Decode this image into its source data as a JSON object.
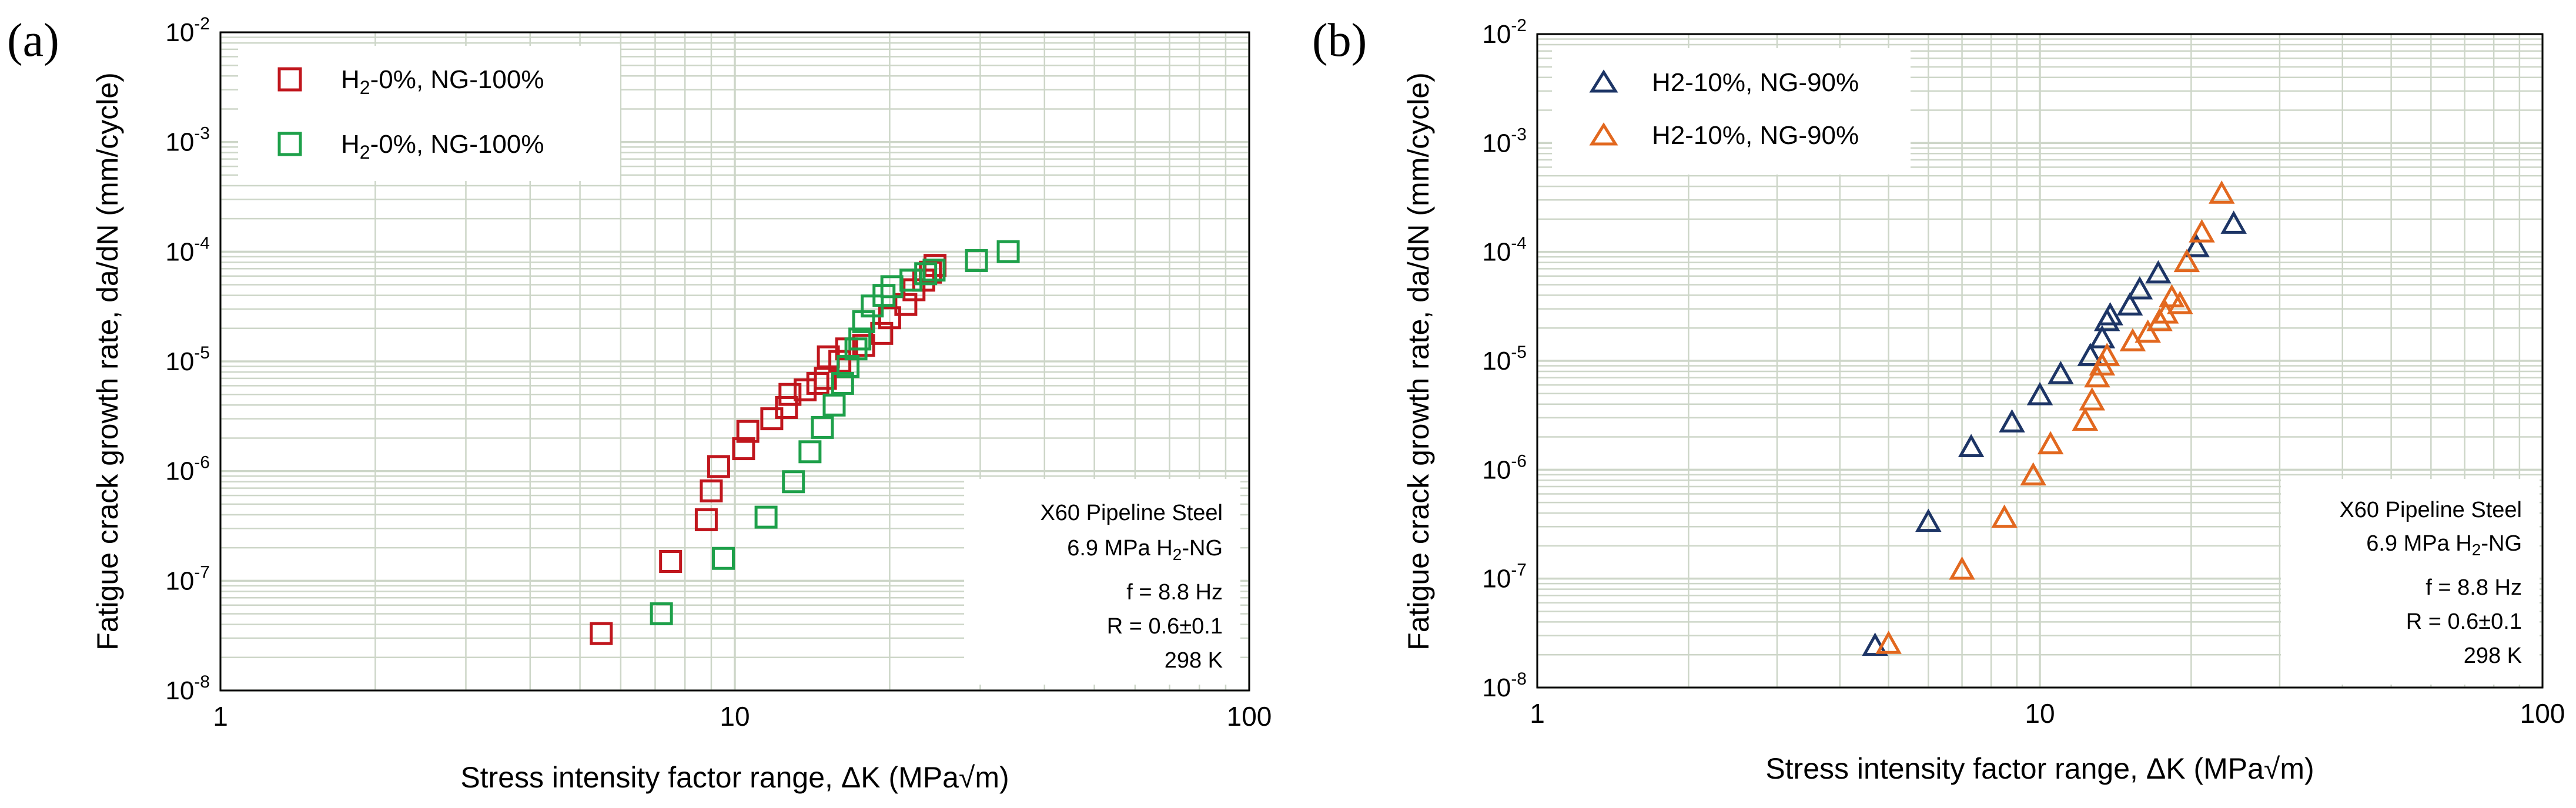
{
  "figure": {
    "colors": {
      "grid": "#cdd6c8",
      "axis": "#000000",
      "panel_a_series1": "#c0161d",
      "panel_a_series2": "#1ea04a",
      "panel_b_series1": "#1d3566",
      "panel_b_series2": "#e2681f"
    }
  },
  "chart_data": [
    {
      "panel_label": "(a)",
      "type": "scatter",
      "x_scale": "log",
      "y_scale": "log",
      "xlim": [
        1,
        100
      ],
      "ylim": [
        1e-08,
        0.01
      ],
      "xlabel": "Stress intensity factor range, ΔK (MPa√m)",
      "ylabel": "Fatigue crack growth rate, da/dN (mm/cycle)",
      "x_ticks": [
        {
          "value": 1,
          "label": "1"
        },
        {
          "value": 10,
          "label": "10"
        },
        {
          "value": 100,
          "label": "100"
        }
      ],
      "y_ticks": [
        {
          "value": 1e-08,
          "base": "10",
          "exp": "-8"
        },
        {
          "value": 1e-07,
          "base": "10",
          "exp": "-7"
        },
        {
          "value": 1e-06,
          "base": "10",
          "exp": "-6"
        },
        {
          "value": 1e-05,
          "base": "10",
          "exp": "-5"
        },
        {
          "value": 0.0001,
          "base": "10",
          "exp": "-4"
        },
        {
          "value": 0.001,
          "base": "10",
          "exp": "-3"
        },
        {
          "value": 0.01,
          "base": "10",
          "exp": "-2"
        }
      ],
      "grid": true,
      "marker": "square",
      "legend_position": "top-left",
      "series": [
        {
          "name": "H2-0%, NG-100%",
          "label_main": "H",
          "label_sub": "2",
          "label_rest": "-0%, NG-100%",
          "color": "#c0161d",
          "x": [
            5.5,
            7.5,
            8.8,
            9.0,
            9.3,
            10.4,
            10.6,
            11.8,
            12.6,
            12.8,
            13.7,
            14.5,
            15.0,
            15.2,
            16.0,
            16.5,
            17.8,
            19.3,
            20.0,
            21.5,
            22.3,
            23.3,
            24.0,
            24.5
          ],
          "y": [
            3.3e-08,
            1.5e-07,
            3.6e-07,
            6.6e-07,
            1.1e-06,
            1.6e-06,
            2.3e-06,
            3e-06,
            3.8e-06,
            5e-06,
            5.5e-06,
            6.3e-06,
            7e-06,
            1.1e-05,
            1e-05,
            1.3e-05,
            1.4e-05,
            1.8e-05,
            2.5e-05,
            3.3e-05,
            4.5e-05,
            5.5e-05,
            6.5e-05,
            7.5e-05
          ]
        },
        {
          "name": "H2-0%, NG-100%",
          "label_main": "H",
          "label_sub": "2",
          "label_rest": "-0%, NG-100%",
          "color": "#1ea04a",
          "x": [
            7.2,
            9.5,
            11.5,
            13.0,
            14.0,
            14.8,
            15.6,
            16.2,
            16.6,
            17.2,
            17.5,
            17.8,
            18.5,
            19.5,
            20.2,
            22.0,
            23.5,
            24.4,
            29.5,
            34.0
          ],
          "y": [
            5e-08,
            1.6e-07,
            3.8e-07,
            8e-07,
            1.5e-06,
            2.5e-06,
            4e-06,
            6.3e-06,
            9e-06,
            1.3e-05,
            1.6e-05,
            2.3e-05,
            3.2e-05,
            4e-05,
            4.8e-05,
            5.5e-05,
            6.3e-05,
            6.8e-05,
            8.3e-05,
            0.0001
          ]
        }
      ],
      "annotation": {
        "line1": "X60 Pipeline Steel",
        "line2_main": "6.9 MPa H",
        "line2_sub": "2",
        "line2_rest": "-NG",
        "line3": "f = 8.8 Hz",
        "line4": "R = 0.6±0.1",
        "line5": "298 K"
      }
    },
    {
      "panel_label": "(b)",
      "type": "scatter",
      "x_scale": "log",
      "y_scale": "log",
      "xlim": [
        1,
        100
      ],
      "ylim": [
        1e-08,
        0.01
      ],
      "xlabel": "Stress intensity factor range, ΔK (MPa√m)",
      "ylabel": "Fatigue crack growth rate, da/dN (mm/cycle)",
      "x_ticks": [
        {
          "value": 1,
          "label": "1"
        },
        {
          "value": 10,
          "label": "10"
        },
        {
          "value": 100,
          "label": "100"
        }
      ],
      "y_ticks": [
        {
          "value": 1e-08,
          "base": "10",
          "exp": "-8"
        },
        {
          "value": 1e-07,
          "base": "10",
          "exp": "-7"
        },
        {
          "value": 1e-06,
          "base": "10",
          "exp": "-6"
        },
        {
          "value": 1e-05,
          "base": "10",
          "exp": "-5"
        },
        {
          "value": 0.0001,
          "base": "10",
          "exp": "-4"
        },
        {
          "value": 0.001,
          "base": "10",
          "exp": "-3"
        },
        {
          "value": 0.01,
          "base": "10",
          "exp": "-2"
        }
      ],
      "grid": true,
      "marker": "triangle",
      "legend_position": "top-left",
      "series": [
        {
          "name": "H2-10%, NG-90%",
          "label_main": "H2-10%, NG-90%",
          "label_sub": "",
          "label_rest": "",
          "color": "#1d3566",
          "x": [
            4.7,
            6.0,
            7.3,
            8.8,
            10.0,
            11.0,
            12.6,
            13.3,
            13.6,
            13.8,
            15.1,
            15.8,
            17.2,
            20.5,
            24.3
          ],
          "y": [
            2.4e-08,
            3.3e-07,
            1.6e-06,
            2.7e-06,
            4.8e-06,
            7.5e-06,
            1.1e-05,
            1.6e-05,
            2.3e-05,
            2.6e-05,
            3.2e-05,
            4.5e-05,
            6.3e-05,
            0.00011,
            0.00018
          ]
        },
        {
          "name": "H2-10%, NG-90%",
          "label_main": "H2-10%, NG-90%",
          "label_sub": "",
          "label_rest": "",
          "color": "#e2681f",
          "x": [
            5.0,
            7.0,
            8.5,
            9.7,
            10.5,
            12.3,
            12.7,
            13.0,
            13.3,
            13.6,
            15.3,
            16.4,
            17.3,
            17.8,
            18.3,
            19.0,
            19.6,
            21.0,
            23.0
          ],
          "y": [
            2.5e-08,
            1.2e-07,
            3.6e-07,
            8.8e-07,
            1.7e-06,
            2.8e-06,
            4.3e-06,
            7e-06,
            9e-06,
            1.1e-05,
            1.5e-05,
            1.8e-05,
            2.3e-05,
            2.7e-05,
            3.8e-05,
            3.3e-05,
            8e-05,
            0.00015,
            0.00034
          ]
        }
      ],
      "annotation": {
        "line1": "X60 Pipeline Steel",
        "line2_main": "6.9 MPa H",
        "line2_sub": "2",
        "line2_rest": "-NG",
        "line3": "f = 8.8 Hz",
        "line4": "R = 0.6±0.1",
        "line5": "298 K"
      }
    }
  ]
}
